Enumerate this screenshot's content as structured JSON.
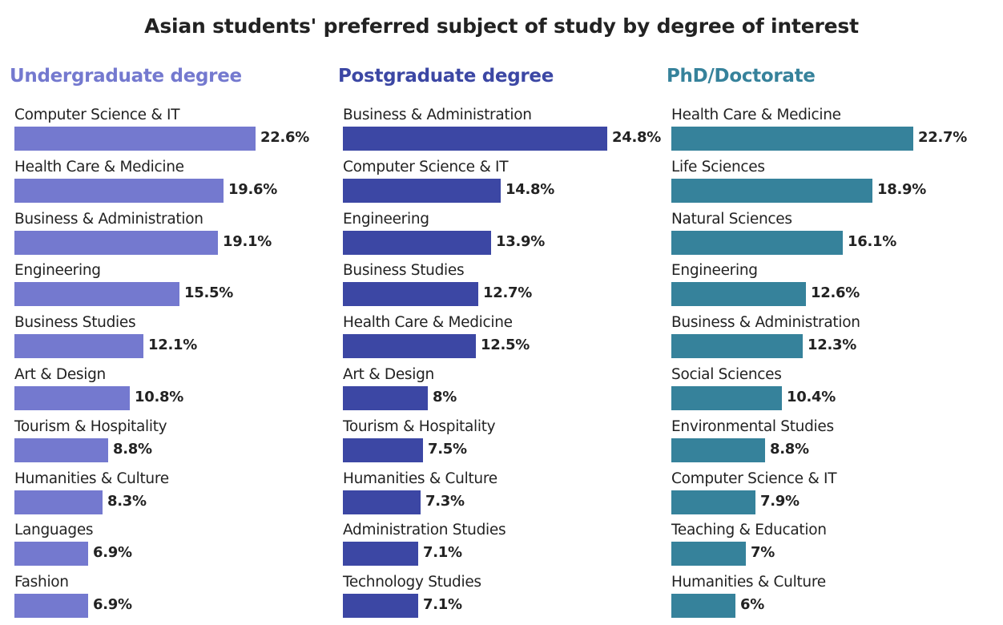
{
  "title": "Asian students' preferred subject of study by degree of interest",
  "colors": {
    "undergraduate": "#7479cf",
    "postgraduate": "#3c47a4",
    "phd": "#36829b"
  },
  "chart_data": [
    {
      "type": "bar",
      "orientation": "horizontal",
      "title": "Undergraduate degree",
      "color": "#7479cf",
      "value_suffix": "%",
      "categories": [
        "Computer Science & IT",
        "Health Care & Medicine",
        "Business & Administration",
        "Engineering",
        "Business Studies",
        "Art & Design",
        "Tourism & Hospitality",
        "Humanities & Culture",
        "Languages",
        "Fashion"
      ],
      "values": [
        22.6,
        19.6,
        19.1,
        15.5,
        12.1,
        10.8,
        8.8,
        8.3,
        6.9,
        6.9
      ],
      "labels": [
        "22.6%",
        "19.6%",
        "19.1%",
        "15.5%",
        "12.1%",
        "10.8%",
        "8.8%",
        "8.3%",
        "6.9%",
        "6.9%"
      ],
      "xlim": [
        0,
        24.8
      ],
      "grid": false
    },
    {
      "type": "bar",
      "orientation": "horizontal",
      "title": "Postgraduate degree",
      "color": "#3c47a4",
      "value_suffix": "%",
      "categories": [
        "Business & Administration",
        "Computer Science & IT",
        "Engineering",
        "Business Studies",
        "Health Care & Medicine",
        "Art & Design",
        "Tourism & Hospitality",
        "Humanities & Culture",
        "Administration Studies",
        "Technology Studies"
      ],
      "values": [
        24.8,
        14.8,
        13.9,
        12.7,
        12.5,
        8,
        7.5,
        7.3,
        7.1,
        7.1
      ],
      "labels": [
        "24.8%",
        "14.8%",
        "13.9%",
        "12.7%",
        "12.5%",
        "8%",
        "7.5%",
        "7.3%",
        "7.1%",
        "7.1%"
      ],
      "xlim": [
        0,
        24.8
      ],
      "grid": false
    },
    {
      "type": "bar",
      "orientation": "horizontal",
      "title": "PhD/Doctorate",
      "color": "#36829b",
      "value_suffix": "%",
      "categories": [
        "Health Care & Medicine",
        "Life Sciences",
        "Natural Sciences",
        "Engineering",
        "Business & Administration",
        "Social Sciences",
        "Environmental Studies",
        "Computer Science & IT",
        "Teaching & Education",
        "Humanities & Culture"
      ],
      "values": [
        22.7,
        18.9,
        16.1,
        12.6,
        12.3,
        10.4,
        8.8,
        7.9,
        7,
        6
      ],
      "labels": [
        "22.7%",
        "18.9%",
        "16.1%",
        "12.6%",
        "12.3%",
        "10.4%",
        "8.8%",
        "7.9%",
        "7%",
        "6%"
      ],
      "xlim": [
        0,
        24.8
      ],
      "grid": false
    }
  ]
}
